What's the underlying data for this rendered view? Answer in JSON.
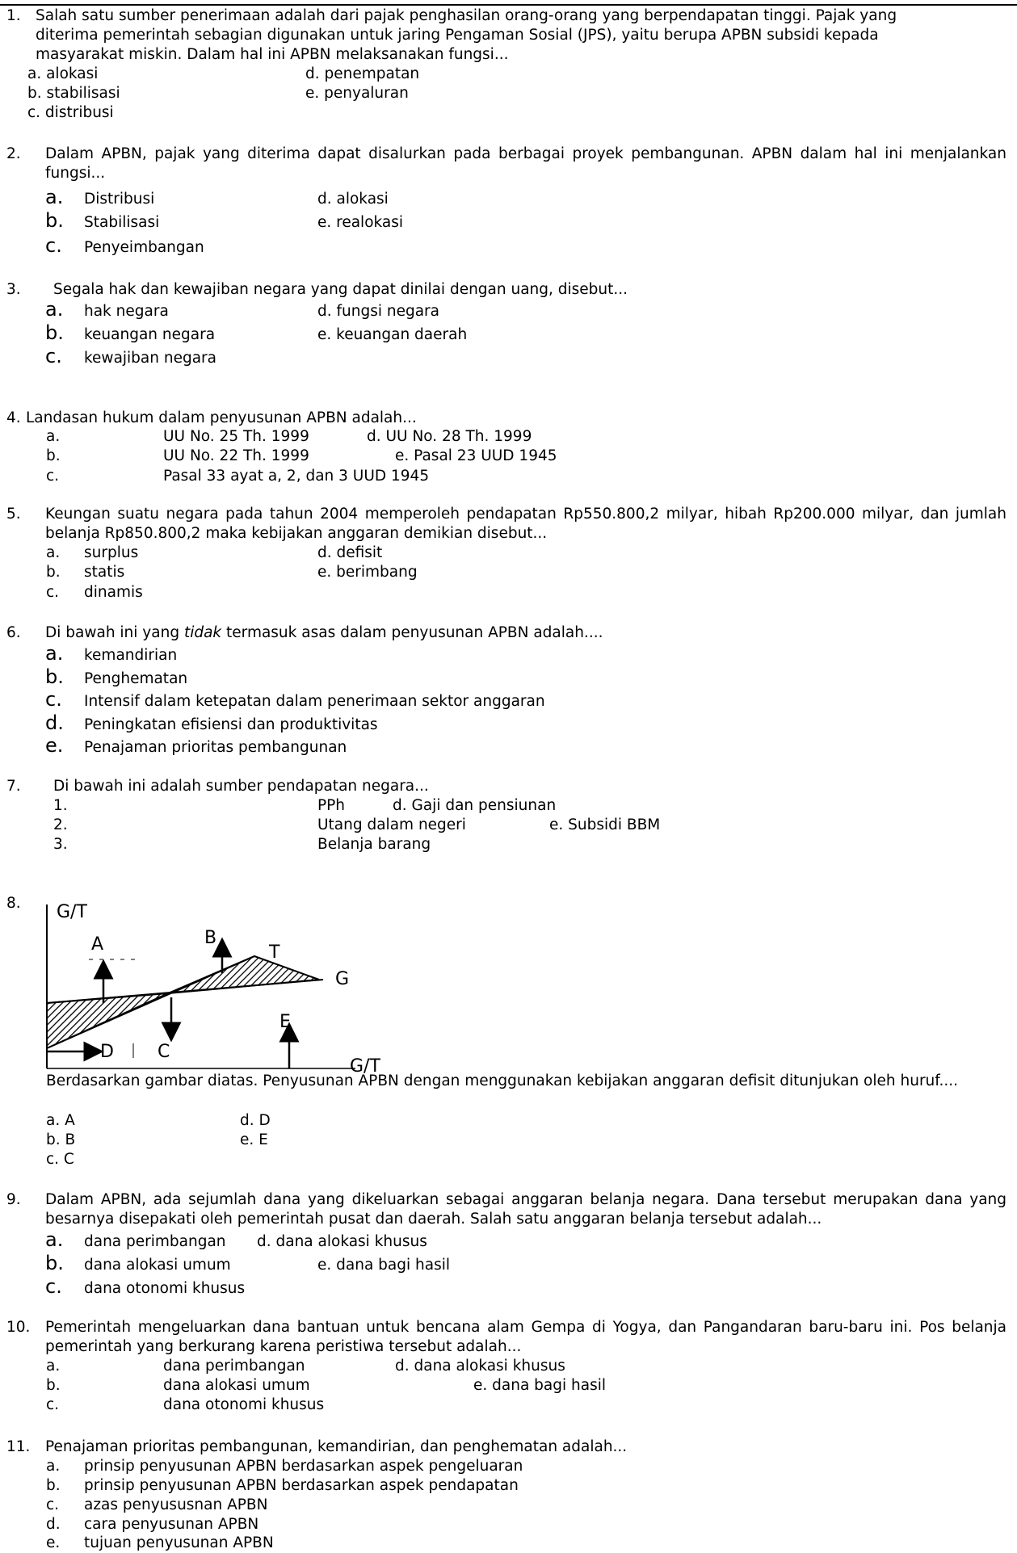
{
  "q1": {
    "num": "1.",
    "text": "Salah satu  sumber penerimaan adalah dari pajak penghasilan orang-orang yang berpendapatan tinggi. Pajak yang diterima pemerintah sebagian digunakan untuk jaring Pengaman Sosial (JPS), yaitu berupa APBN subsidi kepada masyarakat miskin.  Dalam hal ini APBN melaksanakan fungsi...",
    "opts": [
      "a. alokasi",
      "d. penempatan",
      "b. stabilisasi",
      "e.  penyaluran",
      "c. distribusi"
    ]
  },
  "q2": {
    "num": "2.",
    "text": "Dalam APBN, pajak yang diterima dapat disalurkan pada berbagai proyek pembangunan. APBN dalam hal ini menjalankan fungsi...",
    "letters": [
      "a.",
      "b.",
      "c."
    ],
    "opts": [
      "Distribusi",
      "d. alokasi",
      "Stabilisasi",
      "e. realokasi",
      "Penyeimbangan"
    ]
  },
  "q3": {
    "num": "3.",
    "text": "Segala hak dan kewajiban negara yang dapat dinilai dengan uang, disebut...",
    "letters": [
      "a.",
      "b.",
      "c."
    ],
    "opts": [
      "hak negara",
      "d. fungsi negara",
      "keuangan negara",
      "e. keuangan daerah",
      "kewajiban negara"
    ]
  },
  "q4": {
    "num": "4.",
    "text": "Landasan hukum dalam penyusunan APBN adalah...",
    "letters": [
      "a.",
      "b.",
      "c."
    ],
    "opts": [
      "UU No. 25 Th. 1999",
      "d. UU No. 28 Th. 1999",
      "UU No. 22 Th. 1999",
      "e. Pasal 23 UUD 1945",
      "Pasal 33 ayat a, 2, dan 3 UUD 1945"
    ]
  },
  "q5": {
    "num": "5.",
    "text": "Keungan suatu negara pada tahun 2004 memperoleh pendapatan Rp550.800,2 milyar, hibah Rp200.000 milyar, dan jumlah belanja Rp850.800,2  maka kebijakan anggaran demikian disebut...",
    "letters": [
      "a.",
      "b.",
      "c."
    ],
    "opts": [
      "surplus",
      "d.  defisit",
      "statis",
      "e.  berimbang",
      "dinamis"
    ]
  },
  "q6": {
    "num": "6.",
    "text_before": "Di bawah ini yang ",
    "text_em": "tidak",
    "text_after": " termasuk asas dalam penyusunan APBN adalah....",
    "letters": [
      "a.",
      "b.",
      "c.",
      "d.",
      "e."
    ],
    "opts": [
      "kemandirian",
      "Penghematan",
      "Intensif dalam ketepatan dalam penerimaan sektor anggaran",
      "Peningkatan efisiensi dan produktivitas",
      "Penajaman prioritas pembangunan"
    ]
  },
  "q7": {
    "num": "7.",
    "text": "Di bawah ini adalah sumber pendapatan negara...",
    "letters": [
      "1.",
      "2.",
      "3."
    ],
    "opts": [
      "PPh",
      "d. Gaji dan pensiunan",
      "Utang dalam negeri",
      "e. Subsidi BBM",
      "Belanja barang"
    ]
  },
  "q8": {
    "num": "8.",
    "chart": {
      "y_axis": "G/T",
      "x_axis": "G/T",
      "labels": [
        "A",
        "B",
        "T",
        "G",
        "E",
        "D",
        "C"
      ]
    },
    "text": "Berdasarkan gambar diatas. Penyusunan APBN dengan menggunakan kebijakan anggaran defisit ditunjukan oleh huruf....",
    "opts": [
      "a. A",
      "d. D",
      "b. B",
      "e. E",
      "c. C"
    ]
  },
  "q9": {
    "num": "9.",
    "text": "Dalam APBN, ada sejumlah dana yang dikeluarkan sebagai anggaran belanja negara. Dana tersebut merupakan dana yang besarnya disepakati oleh pemerintah pusat  dan daerah. Salah satu anggaran belanja tersebut adalah...",
    "letters": [
      "a.",
      "b.",
      "c."
    ],
    "opts": [
      "dana perimbangan",
      "d. dana alokasi khusus",
      "dana alokasi umum",
      "e. dana bagi hasil",
      "dana otonomi khusus"
    ]
  },
  "q10": {
    "num": "10.",
    "text": "Pemerintah mengeluarkan dana bantuan untuk bencana alam Gempa di Yogya, dan Pangandaran baru-baru ini. Pos belanja pemerintah yang berkurang karena peristiwa tersebut adalah...",
    "letters": [
      "a.",
      "b.",
      "c."
    ],
    "opts": [
      "dana perimbangan",
      "d. dana alokasi khusus",
      "dana alokasi umum",
      "e. dana bagi hasil",
      "dana otonomi khusus"
    ]
  },
  "q11": {
    "num": "11.",
    "text": "Penajaman prioritas pembangunan, kemandirian, dan penghematan adalah...",
    "letters": [
      "a.",
      "b.",
      "c.",
      "d.",
      "e."
    ],
    "opts": [
      "prinsip penyusunan APBN berdasarkan aspek pengeluaran",
      "prinsip penyusunan APBN berdasarkan aspek pendapatan",
      "azas penyususnan APBN",
      "cara penyusunan APBN",
      "tujuan penyusunan APBN"
    ]
  }
}
